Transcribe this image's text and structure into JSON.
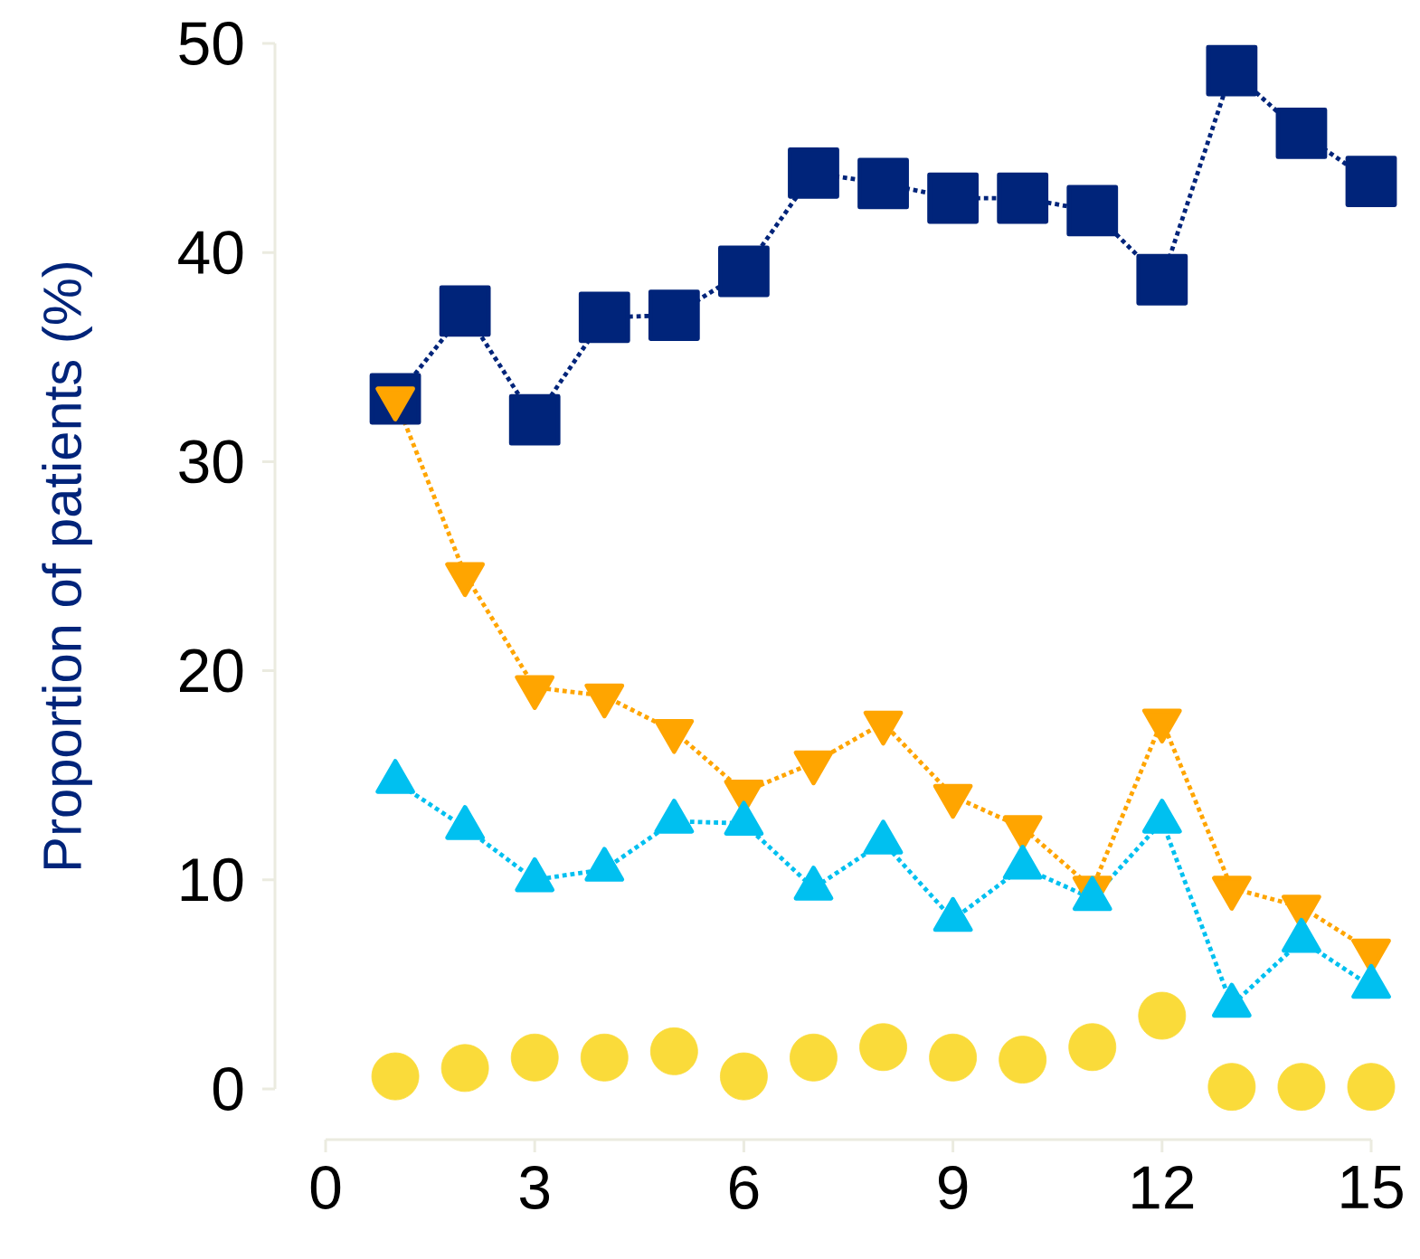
{
  "chart_data": {
    "type": "line",
    "ylabel": "Proportion of patients (%)",
    "x": [
      1,
      2,
      3,
      4,
      5,
      6,
      7,
      8,
      9,
      10,
      11,
      12,
      13,
      14,
      15
    ],
    "xlim": [
      0,
      15
    ],
    "xticks": [
      0,
      3,
      6,
      9,
      12,
      15
    ],
    "ylim": [
      0,
      50
    ],
    "yticks": [
      0,
      10,
      20,
      30,
      40,
      50
    ],
    "grid": false,
    "line_style": "dotted",
    "series": [
      {
        "color": "#00247a",
        "marker": "square",
        "values": [
          33.0,
          37.2,
          32.0,
          36.9,
          37.0,
          39.1,
          43.8,
          43.3,
          42.6,
          42.6,
          42.0,
          38.7,
          48.7,
          45.7,
          43.4
        ]
      },
      {
        "color": "#ffa500",
        "marker": "triangle-down",
        "values": [
          33.0,
          24.6,
          19.2,
          18.8,
          17.1,
          14.2,
          15.6,
          17.5,
          14.0,
          12.5,
          9.6,
          17.6,
          9.6,
          8.7,
          6.6
        ]
      },
      {
        "color": "#00c0f0",
        "marker": "triangle",
        "values": [
          14.7,
          12.5,
          10.0,
          10.5,
          12.8,
          12.7,
          9.6,
          11.8,
          8.1,
          10.6,
          9.1,
          12.8,
          4.0,
          7.1,
          4.9
        ]
      },
      {
        "type": "scatter",
        "color": "#fadb3a",
        "marker": "circle",
        "values": [
          0.6,
          1.0,
          1.5,
          1.5,
          1.8,
          0.6,
          1.5,
          2.0,
          1.5,
          1.4,
          2.0,
          3.5,
          0.1,
          0.1,
          0.1
        ]
      }
    ]
  }
}
